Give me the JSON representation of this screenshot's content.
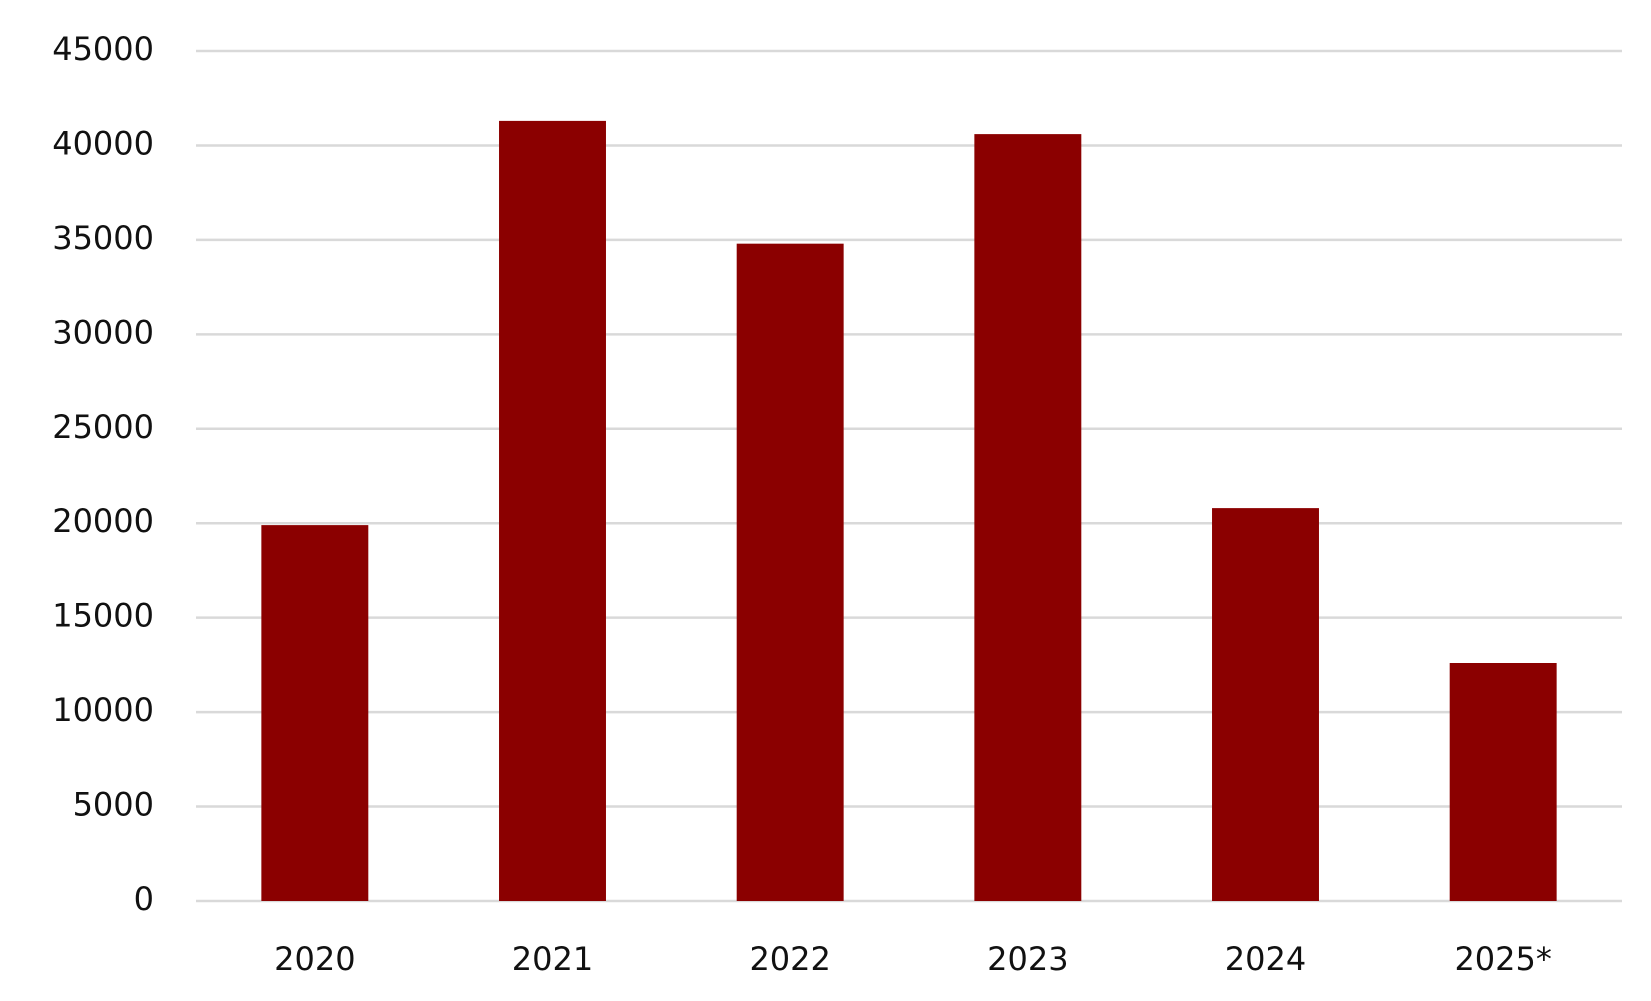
{
  "chart_data": {
    "type": "bar",
    "categories": [
      "2020",
      "2021",
      "2022",
      "2023",
      "2024",
      "2025*"
    ],
    "values": [
      19900,
      41300,
      34800,
      40600,
      20800,
      12600
    ],
    "color": "#8b0000",
    "ylim": [
      0,
      45000
    ],
    "yticks": [
      0,
      5000,
      10000,
      15000,
      20000,
      25000,
      30000,
      35000,
      40000,
      45000
    ],
    "grid": true
  }
}
